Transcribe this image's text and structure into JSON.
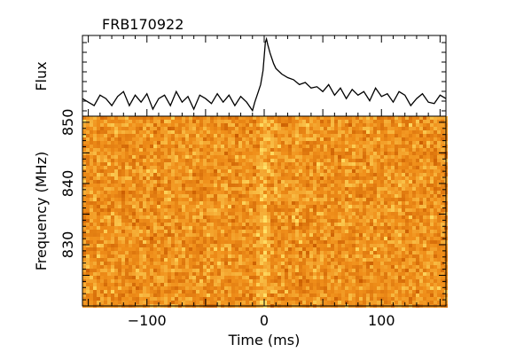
{
  "chart_data": [
    {
      "type": "line",
      "title": "FRB170922",
      "ylabel": "Flux",
      "xlabel": "",
      "xlim": [
        -155,
        155
      ],
      "grid": false,
      "description_of_series": "",
      "series": [
        {
          "x": [
            -155,
            -150,
            -145,
            -140,
            -135,
            -130,
            -125,
            -120,
            -115,
            -110,
            -105,
            -100,
            -95,
            -90,
            -85,
            -80,
            -75,
            -70,
            -65,
            -60,
            -55,
            -50,
            -45,
            -40,
            -35,
            -30,
            -25,
            -20,
            -15,
            -10,
            -8,
            -5,
            -3,
            -1,
            0,
            1,
            2,
            3,
            5,
            8,
            10,
            15,
            20,
            25,
            30,
            35,
            40,
            45,
            50,
            55,
            60,
            65,
            70,
            75,
            80,
            85,
            90,
            95,
            100,
            105,
            110,
            115,
            120,
            125,
            130,
            135,
            140,
            145,
            150,
            155
          ],
          "y": [
            0.15,
            0.1,
            0.05,
            0.2,
            0.15,
            0.05,
            0.18,
            0.25,
            0.05,
            0.2,
            0.1,
            0.22,
            0.0,
            0.15,
            0.2,
            0.05,
            0.25,
            0.1,
            0.18,
            0.0,
            0.2,
            0.15,
            0.08,
            0.22,
            0.1,
            0.2,
            0.05,
            0.18,
            0.1,
            -0.02,
            0.1,
            0.25,
            0.35,
            0.55,
            0.75,
            0.95,
            1.0,
            0.92,
            0.8,
            0.65,
            0.58,
            0.5,
            0.45,
            0.42,
            0.35,
            0.38,
            0.3,
            0.32,
            0.25,
            0.35,
            0.2,
            0.3,
            0.15,
            0.28,
            0.2,
            0.25,
            0.12,
            0.3,
            0.18,
            0.22,
            0.1,
            0.25,
            0.2,
            0.05,
            0.15,
            0.22,
            0.1,
            0.08,
            0.2,
            0.15
          ]
        }
      ]
    },
    {
      "type": "heatmap",
      "title": "",
      "xlabel": "Time (ms)",
      "ylabel": "Frequency (MHz)",
      "xlim": [
        -155,
        155
      ],
      "ylim": [
        820,
        851
      ],
      "xticks": [
        -100,
        0,
        100
      ],
      "yticks": [
        830,
        840,
        850
      ],
      "colors": {
        "low": "#c85a00",
        "mid": "#f08f1a",
        "high": "#ffe066"
      },
      "burst_time": 0
    }
  ]
}
